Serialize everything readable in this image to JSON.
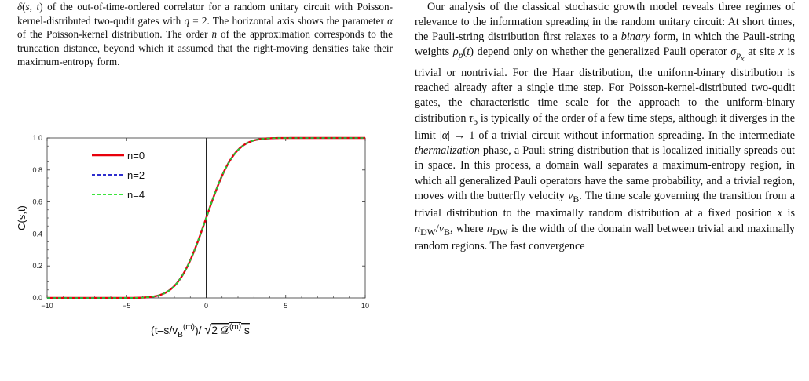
{
  "caption": {
    "line1_fragment": "δ(s, t) of the out-of-time-ordered correlator for a random unitary circuit with Poisson-kernel-distributed two-qudit gates with q = 2. The horizontal axis shows the parameter α of the Poisson-kernel distribution. The order n of the approximation corresponds to the truncation distance, beyond which it assumed that the right-moving densities take their maximum-entropy form."
  },
  "body": {
    "paragraph": "Our analysis of the classical stochastic growth model reveals three regimes of relevance to the information spreading in the random unitary circuit: At short times, the Pauli-string distribution first relaxes to a binary form, in which the Pauli-string weights ρp(t) depend only on whether the generalized Pauli operator σpx at site x is trivial or nontrivial. For the Haar distribution, the uniform-binary distribution is reached already after a single time step. For Poisson-kernel-distributed two-qudit gates, the characteristic time scale for the approach to the uniform-binary distribution τb is typically of the order of a few time steps, although it diverges in the limit |α| → 1 of a trivial circuit without information spreading. In the intermediate thermalization phase, a Pauli string distribution that is localized initially spreads out in space. In this process, a domain wall separates a maximum-entropy region, in which all generalized Pauli operators have the same probability, and a trivial region, moves with the butterfly velocity vB. The time scale governing the transition from a trivial distribution to the maximally random distribution at a fixed position x is nDW/vB, where nDW is the width of the domain wall between trivial and maximally random regions. The fast convergence"
  },
  "chart_data": {
    "type": "line",
    "title": "",
    "xlabel": "(t−s/v_B^(m))/√(2𝒟^(m) s)",
    "ylabel": "C(s,t)",
    "xlim": [
      -10,
      10
    ],
    "ylim": [
      0,
      1
    ],
    "xticks": [
      "−10",
      "−5",
      "0",
      "5",
      "10"
    ],
    "yticks": [
      "0.0",
      "0.2",
      "0.4",
      "0.6",
      "0.8",
      "1.0"
    ],
    "legend_placement": "top-left",
    "grid": false,
    "function": "0.5*(1+erf(x/sqrt(2)*0.72))",
    "series": [
      {
        "name": "n=0",
        "color": "#e8000b",
        "style": "solid"
      },
      {
        "name": "n=2",
        "color": "#1010c8",
        "style": "dashed"
      },
      {
        "name": "n=4",
        "color": "#22e022",
        "style": "dashed"
      }
    ]
  }
}
